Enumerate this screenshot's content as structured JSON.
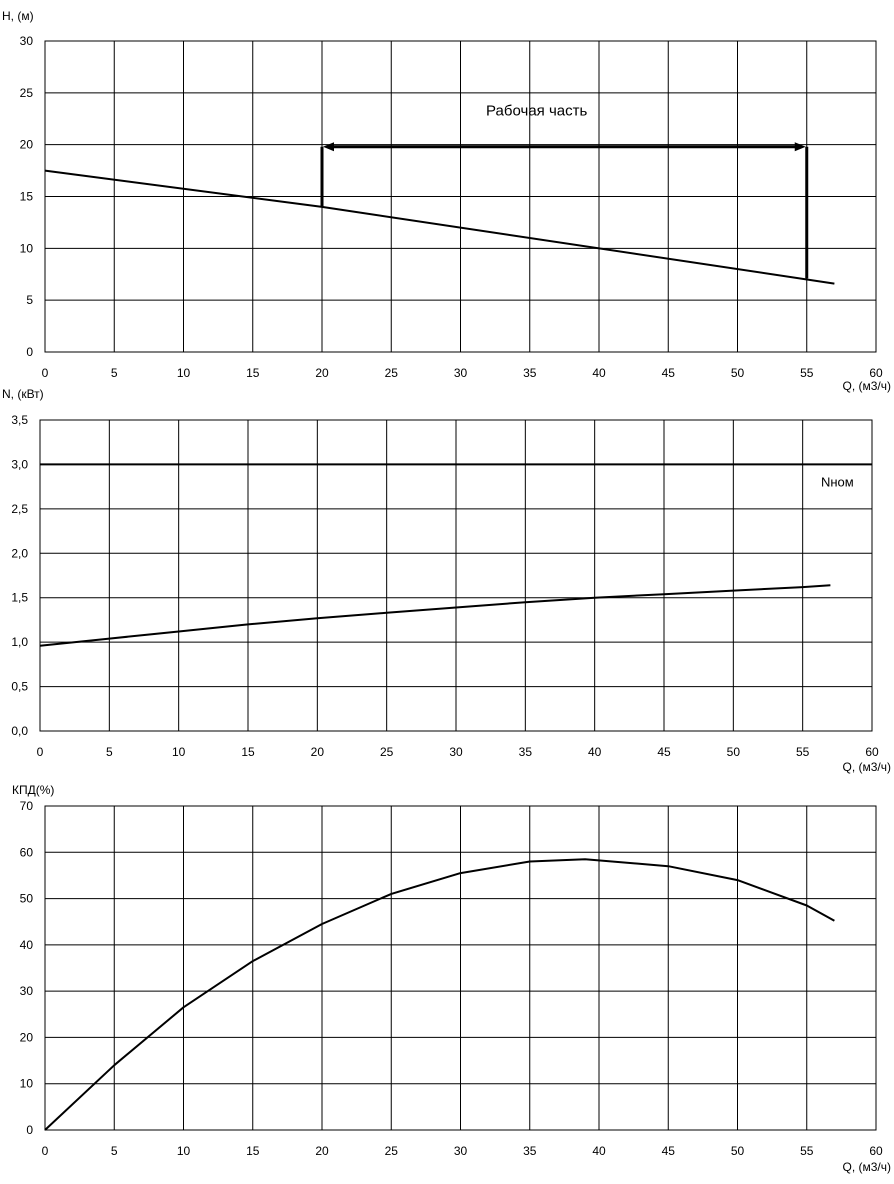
{
  "chart_data": [
    {
      "type": "line",
      "ylabel": "Н, (м)",
      "xlabel": "Q, (м3/ч)",
      "xlim": [
        0,
        60
      ],
      "ylim": [
        0,
        30
      ],
      "xticks": [
        "0",
        "5",
        "10",
        "15",
        "20",
        "25",
        "30",
        "35",
        "40",
        "45",
        "50",
        "55",
        "60"
      ],
      "yticks": [
        "0",
        "5",
        "10",
        "15",
        "20",
        "25",
        "30"
      ],
      "grid": true,
      "series": [
        {
          "x": [
            0,
            20,
            57
          ],
          "y": [
            17.5,
            14,
            6.6
          ]
        }
      ],
      "annotations": [
        {
          "text": "Рабочая часть",
          "x": 35.5,
          "y": 22.8
        }
      ],
      "working_range": {
        "x_start": 20,
        "x_end": 55,
        "y_top": 19.8,
        "y_start_bottom": 14,
        "y_end_bottom": 7.1
      }
    },
    {
      "type": "line",
      "ylabel": "N, (кВт)",
      "xlabel": "Q, (м3/ч)",
      "xlim": [
        0,
        60
      ],
      "ylim": [
        0,
        3.5
      ],
      "xticks": [
        "0",
        "5",
        "10",
        "15",
        "20",
        "25",
        "30",
        "35",
        "40",
        "45",
        "50",
        "55",
        "60"
      ],
      "yticks": [
        "0,0",
        "0,5",
        "1,0",
        "1,5",
        "2,0",
        "2,5",
        "3,0",
        "3,5"
      ],
      "grid": true,
      "series": [
        {
          "x": [
            0,
            5,
            10,
            15,
            20,
            25,
            30,
            35,
            40,
            45,
            50,
            55,
            57
          ],
          "y": [
            0.96,
            1.04,
            1.12,
            1.2,
            1.27,
            1.33,
            1.39,
            1.45,
            1.5,
            1.54,
            1.58,
            1.62,
            1.64
          ]
        },
        {
          "x": [
            0,
            60
          ],
          "y": [
            3.0,
            3.0
          ]
        }
      ],
      "annotations": [
        {
          "text": "Nном",
          "x": 57.5,
          "y": 2.75
        }
      ]
    },
    {
      "type": "line",
      "ylabel": "КПД(%)",
      "xlabel": "Q, (м3/ч)",
      "xlim": [
        0,
        60
      ],
      "ylim": [
        0,
        70
      ],
      "xticks": [
        "0",
        "5",
        "10",
        "15",
        "20",
        "25",
        "30",
        "35",
        "40",
        "45",
        "50",
        "55",
        "60"
      ],
      "yticks": [
        "0",
        "10",
        "20",
        "30",
        "40",
        "50",
        "60",
        "70"
      ],
      "grid": true,
      "series": [
        {
          "x": [
            0,
            5,
            10,
            15,
            20,
            25,
            30,
            35,
            39,
            45,
            50,
            55,
            57
          ],
          "y": [
            0,
            14,
            26.5,
            36.5,
            44.5,
            51,
            55.5,
            58,
            58.5,
            57,
            54,
            48.5,
            45.2
          ]
        }
      ],
      "annotations": []
    }
  ]
}
